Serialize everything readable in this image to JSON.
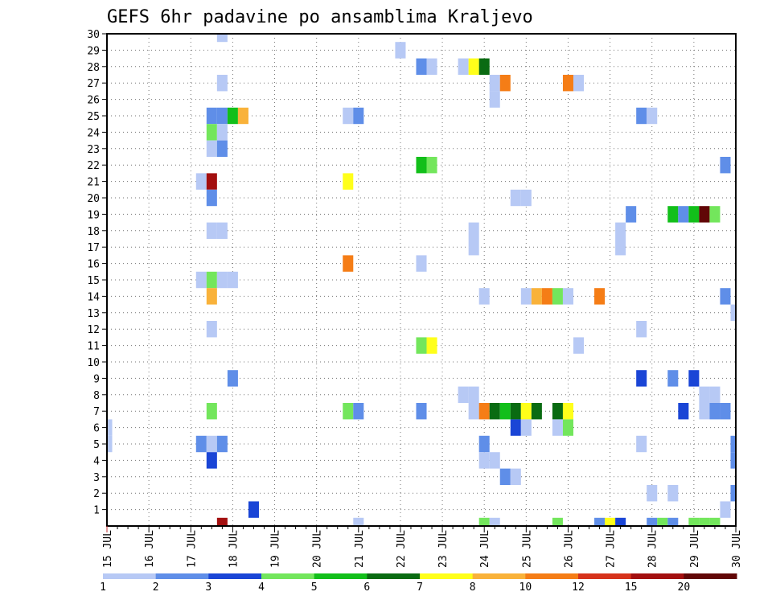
{
  "chart_data": {
    "type": "heatmap",
    "title": "GEFS 6hr padavine po ansamblima Kraljevo",
    "xlabel": "",
    "ylabel": "",
    "x_tick_labels": [
      "15 JUL",
      "16 JUL",
      "17 JUL",
      "18 JUL",
      "19 JUL",
      "20 JUL",
      "21 JUL",
      "22 JUL",
      "23 JUL",
      "24 JUL",
      "25 JUL",
      "26 JUL",
      "27 JUL",
      "28 JUL",
      "29 JUL",
      "30 JUL"
    ],
    "y_tick_labels": [
      "1",
      "2",
      "3",
      "4",
      "5",
      "6",
      "7",
      "8",
      "9",
      "10",
      "11",
      "12",
      "13",
      "14",
      "15",
      "16",
      "17",
      "18",
      "19",
      "20",
      "21",
      "22",
      "23",
      "24",
      "25",
      "26",
      "27",
      "28",
      "29",
      "30"
    ],
    "xlim": [
      0,
      60
    ],
    "ylim": [
      0,
      30
    ],
    "grid": true,
    "colorbar": {
      "labels": [
        "1",
        "2",
        "3",
        "4",
        "5",
        "6",
        "7",
        "8",
        "10",
        "12",
        "15",
        "20"
      ],
      "colors": [
        "#b7c9f5",
        "#5f8ee8",
        "#1a45d6",
        "#73e65c",
        "#12bf1a",
        "#0a6b12",
        "#ffff1a",
        "#f9b23a",
        "#f57d16",
        "#d6321b",
        "#a30f0f",
        "#610606"
      ]
    },
    "cells": [
      [
        11,
        30,
        1
      ],
      [
        28,
        29,
        1
      ],
      [
        30,
        28,
        2
      ],
      [
        31,
        28,
        1
      ],
      [
        34,
        28,
        1
      ],
      [
        35,
        28,
        7
      ],
      [
        36,
        28,
        6
      ],
      [
        11,
        27,
        1
      ],
      [
        37,
        27,
        1
      ],
      [
        38,
        27,
        9
      ],
      [
        44,
        27,
        9
      ],
      [
        45,
        27,
        1
      ],
      [
        37,
        26,
        1
      ],
      [
        10,
        25,
        2
      ],
      [
        11,
        25,
        2
      ],
      [
        12,
        25,
        5
      ],
      [
        13,
        25,
        8
      ],
      [
        23,
        25,
        1
      ],
      [
        24,
        25,
        2
      ],
      [
        51,
        25,
        2
      ],
      [
        52,
        25,
        1
      ],
      [
        10,
        24,
        4
      ],
      [
        11,
        24,
        1
      ],
      [
        10,
        23,
        1
      ],
      [
        11,
        23,
        2
      ],
      [
        30,
        22,
        5
      ],
      [
        31,
        22,
        4
      ],
      [
        59,
        22,
        2
      ],
      [
        9,
        21,
        1
      ],
      [
        10,
        21,
        11
      ],
      [
        23,
        21,
        7
      ],
      [
        10,
        20,
        2
      ],
      [
        39,
        20,
        1
      ],
      [
        40,
        20,
        1
      ],
      [
        50,
        19,
        2
      ],
      [
        54,
        19,
        5
      ],
      [
        55,
        19,
        2
      ],
      [
        56,
        19,
        5
      ],
      [
        57,
        19,
        12
      ],
      [
        58,
        19,
        4
      ],
      [
        10,
        18,
        1
      ],
      [
        11,
        18,
        1
      ],
      [
        35,
        18,
        1
      ],
      [
        49,
        18,
        1
      ],
      [
        35,
        17,
        1
      ],
      [
        49,
        17,
        1
      ],
      [
        23,
        16,
        9
      ],
      [
        30,
        16,
        1
      ],
      [
        9,
        15,
        1
      ],
      [
        10,
        15,
        4
      ],
      [
        11,
        15,
        1
      ],
      [
        12,
        15,
        1
      ],
      [
        10,
        14,
        8
      ],
      [
        36,
        14,
        1
      ],
      [
        40,
        14,
        1
      ],
      [
        41,
        14,
        8
      ],
      [
        42,
        14,
        9
      ],
      [
        43,
        14,
        4
      ],
      [
        44,
        14,
        1
      ],
      [
        47,
        14,
        9
      ],
      [
        59,
        14,
        2
      ],
      [
        60,
        13,
        1
      ],
      [
        10,
        12,
        1
      ],
      [
        51,
        12,
        1
      ],
      [
        30,
        11,
        4
      ],
      [
        31,
        11,
        7
      ],
      [
        45,
        11,
        1
      ],
      [
        12,
        9,
        2
      ],
      [
        51,
        9,
        3
      ],
      [
        54,
        9,
        2
      ],
      [
        56,
        9,
        3
      ],
      [
        34,
        8,
        1
      ],
      [
        35,
        8,
        1
      ],
      [
        57,
        8,
        1
      ],
      [
        58,
        8,
        1
      ],
      [
        10,
        7,
        4
      ],
      [
        23,
        7,
        4
      ],
      [
        24,
        7,
        2
      ],
      [
        30,
        7,
        2
      ],
      [
        35,
        7,
        1
      ],
      [
        36,
        7,
        9
      ],
      [
        37,
        7,
        6
      ],
      [
        38,
        7,
        5
      ],
      [
        39,
        7,
        6
      ],
      [
        40,
        7,
        7
      ],
      [
        41,
        7,
        6
      ],
      [
        43,
        7,
        6
      ],
      [
        44,
        7,
        7
      ],
      [
        55,
        7,
        3
      ],
      [
        57,
        7,
        1
      ],
      [
        58,
        7,
        2
      ],
      [
        59,
        7,
        2
      ],
      [
        0,
        6,
        1
      ],
      [
        39,
        6,
        3
      ],
      [
        40,
        6,
        1
      ],
      [
        43,
        6,
        1
      ],
      [
        44,
        6,
        4
      ],
      [
        0,
        5,
        1
      ],
      [
        9,
        5,
        2
      ],
      [
        10,
        5,
        1
      ],
      [
        11,
        5,
        2
      ],
      [
        36,
        5,
        2
      ],
      [
        51,
        5,
        1
      ],
      [
        60,
        5,
        2
      ],
      [
        10,
        4,
        3
      ],
      [
        36,
        4,
        1
      ],
      [
        37,
        4,
        1
      ],
      [
        60,
        4,
        2
      ],
      [
        38,
        3,
        2
      ],
      [
        39,
        3,
        1
      ],
      [
        52,
        2,
        1
      ],
      [
        54,
        2,
        1
      ],
      [
        60,
        2,
        2
      ],
      [
        14,
        1,
        3
      ],
      [
        59,
        1,
        1
      ],
      [
        11,
        0,
        11
      ],
      [
        24,
        0,
        1
      ],
      [
        36,
        0,
        4
      ],
      [
        37,
        0,
        1
      ],
      [
        43,
        0,
        4
      ],
      [
        47,
        0,
        2
      ],
      [
        48,
        0,
        7
      ],
      [
        49,
        0,
        3
      ],
      [
        52,
        0,
        2
      ],
      [
        53,
        0,
        4
      ],
      [
        54,
        0,
        2
      ],
      [
        56,
        0,
        4
      ],
      [
        57,
        0,
        4
      ],
      [
        58,
        0,
        4
      ]
    ]
  }
}
